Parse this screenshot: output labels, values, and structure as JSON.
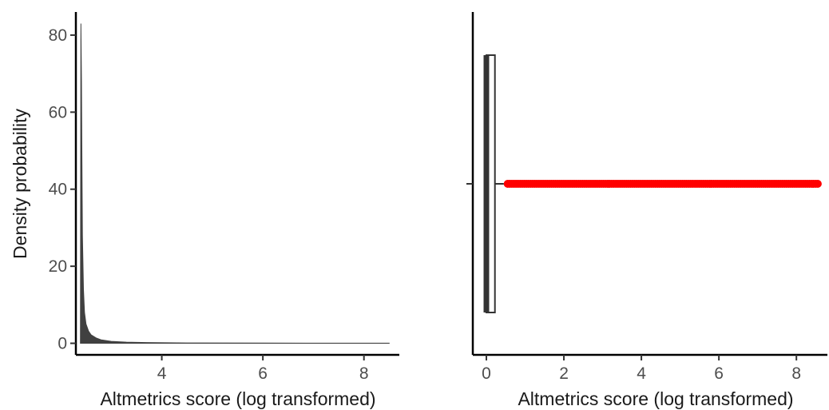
{
  "chart_data": [
    {
      "type": "area",
      "xlabel": "Altmetrics score (log transformed)",
      "ylabel": "Density probability",
      "xlim": [
        2.3,
        8.7
      ],
      "ylim": [
        -3,
        86
      ],
      "x_ticks": [
        4,
        6,
        8
      ],
      "y_ticks": [
        0,
        20,
        40,
        60,
        80
      ],
      "grid": false,
      "color": "#404040",
      "density": {
        "x": [
          2.39,
          2.4,
          2.41,
          2.42,
          2.43,
          2.45,
          2.47,
          2.5,
          2.55,
          2.6,
          2.7,
          2.8,
          3.0,
          3.3,
          3.7,
          4.5,
          6.0,
          8.5
        ],
        "y": [
          0,
          83,
          68,
          47,
          28,
          14,
          8,
          5,
          3.2,
          2.2,
          1.4,
          0.9,
          0.5,
          0.3,
          0.2,
          0.1,
          0.05,
          0.02
        ]
      }
    },
    {
      "type": "box",
      "xlabel": "Altmetrics score (log transformed)",
      "xlim": [
        -0.35,
        8.8
      ],
      "x_ticks": [
        0,
        2,
        4,
        6,
        8
      ],
      "grid": false,
      "box": {
        "lower_whisker": 0,
        "q1": 0,
        "median": 0,
        "q3": 0.22,
        "upper_whisker": 0.45
      },
      "outlier_range": [
        0.55,
        8.55
      ],
      "outlier_color": "#ff0000",
      "box_line_color": "#333333"
    }
  ]
}
